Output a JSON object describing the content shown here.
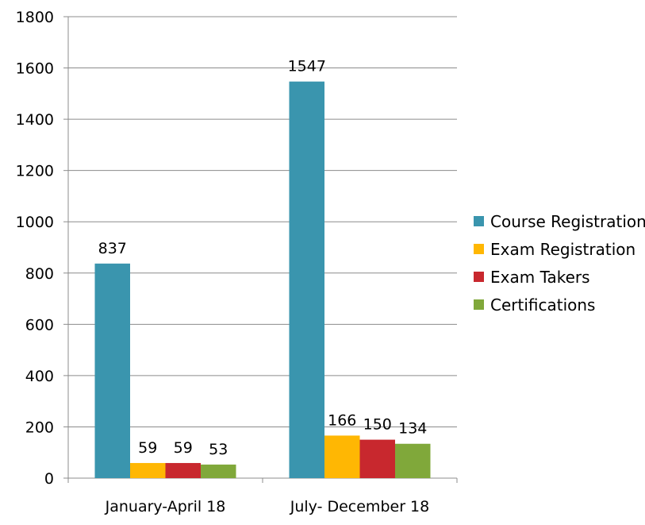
{
  "chart_data": {
    "type": "bar",
    "categories": [
      "January-April 18",
      "July- December 18"
    ],
    "series": [
      {
        "name": "Course Registration",
        "values": [
          837,
          1547
        ],
        "color": "#3A95AE"
      },
      {
        "name": "Exam Registration",
        "values": [
          59,
          166
        ],
        "color": "#FFB703"
      },
      {
        "name": "Exam Takers",
        "values": [
          59,
          150
        ],
        "color": "#C8282E"
      },
      {
        "name": "Certifications",
        "values": [
          53,
          134
        ],
        "color": "#80A83A"
      }
    ],
    "ylim": [
      0,
      1800
    ],
    "yticks": [
      0,
      200,
      400,
      600,
      800,
      1000,
      1200,
      1400,
      1600,
      1800
    ],
    "grid": true,
    "legend_position": "right"
  }
}
